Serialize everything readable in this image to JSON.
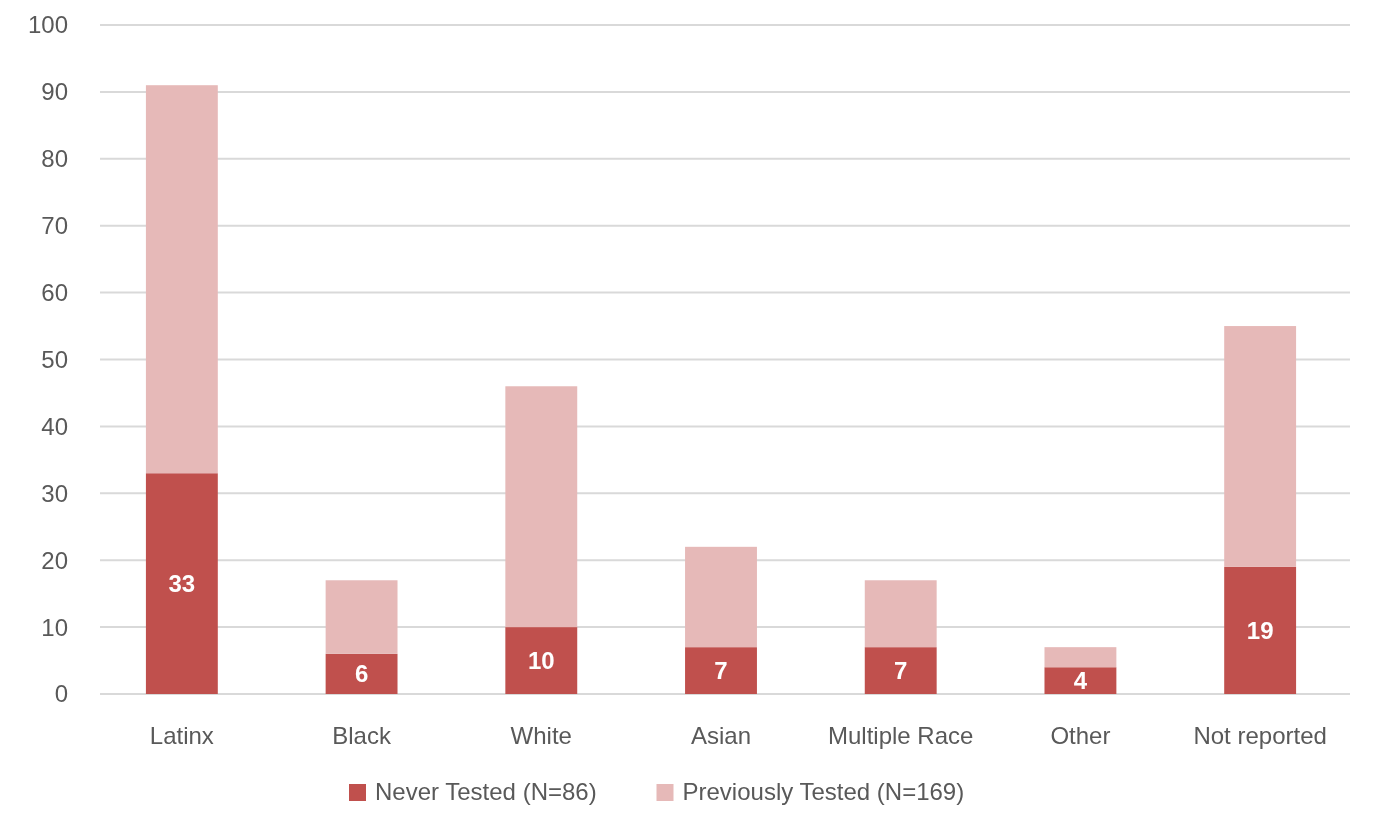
{
  "chart_data": {
    "type": "bar",
    "stacked": true,
    "categories": [
      "Latinx",
      "Black",
      "White",
      "Asian",
      "Multiple Race",
      "Other",
      "Not reported"
    ],
    "series": [
      {
        "name": "Never Tested (N=86)",
        "color": "#c0504d",
        "values": [
          33,
          6,
          10,
          7,
          7,
          4,
          19
        ],
        "value_labels": [
          "33",
          "6",
          "10",
          "7",
          "7",
          "4",
          "19"
        ]
      },
      {
        "name": "Previously Tested (N=169)",
        "color": "#e6b9b8",
        "values": [
          58,
          11,
          36,
          15,
          10,
          3,
          36
        ]
      }
    ],
    "ylim": [
      0,
      100
    ],
    "yticks": [
      0,
      10,
      20,
      30,
      40,
      50,
      60,
      70,
      80,
      90,
      100
    ],
    "grid": "y",
    "legend": "bottom"
  }
}
